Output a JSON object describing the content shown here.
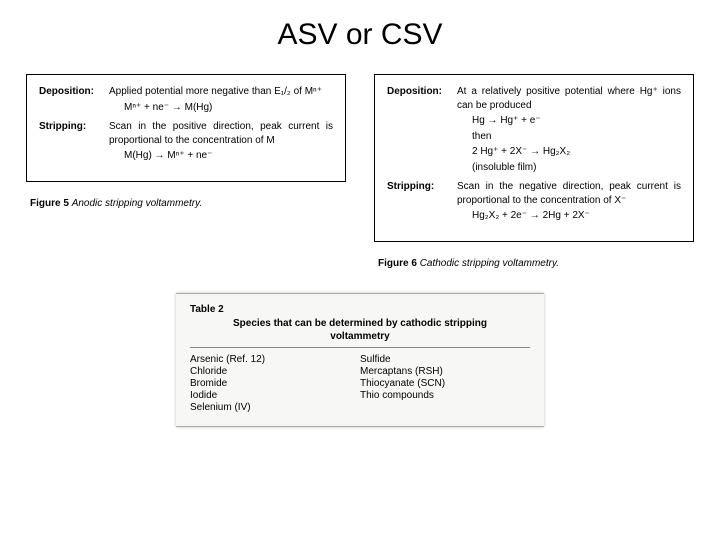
{
  "title": "ASV or CSV",
  "left": {
    "caption_strong": "Figure 5",
    "caption_rest": "Anodic stripping voltammetry.",
    "dep_label": "Deposition:",
    "dep_text": "Applied potential more negative than E₁/₂ of Mⁿ⁺",
    "dep_eq": "Mⁿ⁺ + ne⁻ → M(Hg)",
    "strip_label": "Stripping:",
    "strip_text": "Scan in the positive direction, peak current is proportional to the concentration of M",
    "strip_eq": "M(Hg) → Mⁿ⁺ + ne⁻"
  },
  "right": {
    "caption_strong": "Figure 6",
    "caption_rest": "Cathodic stripping voltammetry.",
    "dep_label": "Deposition:",
    "dep_text": "At a relatively positive potential where Hg⁺ ions can be produced",
    "dep_eq1": "Hg → Hg⁺ + e⁻",
    "dep_then": "then",
    "dep_eq2": "2 Hg⁺ + 2X⁻ → Hg₂X₂",
    "dep_note": "(insoluble film)",
    "strip_label": "Stripping:",
    "strip_text": "Scan in the negative direction, peak current is proportional to the concentration of X⁻",
    "strip_eq": "Hg₂X₂ + 2e⁻ → 2Hg + 2X⁻"
  },
  "table": {
    "label": "Table 2",
    "title": "Species that can be determined by cathodic stripping voltammetry",
    "col1_0": "Arsenic (Ref. 12)",
    "col1_1": "Chloride",
    "col1_2": "Bromide",
    "col1_3": "Iodide",
    "col1_4": "Selenium (IV)",
    "col2_0": "Sulfide",
    "col2_1": "Mercaptans (RSH)",
    "col2_2": "Thiocyanate (SCN)",
    "col2_3": "Thio compounds"
  }
}
